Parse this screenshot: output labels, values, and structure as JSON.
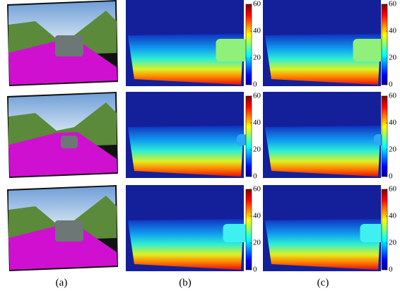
{
  "captions": [
    "(a)",
    "(b)",
    "(c)"
  ],
  "colorbar": {
    "ticks": [
      0,
      20,
      40,
      60
    ]
  }
}
